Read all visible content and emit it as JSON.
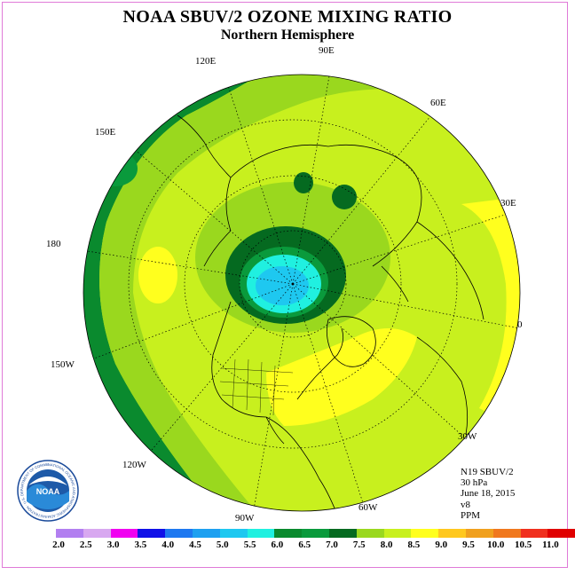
{
  "title": "NOAA SBUV/2 OZONE MIXING RATIO",
  "subtitle": "Northern Hemisphere",
  "longitude_labels": {
    "lon_120e": "120E",
    "lon_90e": "90E",
    "lon_60e": "60E",
    "lon_150e": "150E",
    "lon_30e": "30E",
    "lon_180": "180",
    "lon_0": "0",
    "lon_150w": "150W",
    "lon_30w": "30W",
    "lon_120w": "120W",
    "lon_60w": "60W",
    "lon_90w": "90W"
  },
  "info": {
    "satellite": "N19 SBUV/2",
    "level": "30 hPa",
    "date": "June 18, 2015",
    "version": "v8",
    "units": "PPM"
  },
  "colorbar": {
    "colors": [
      "#b27ff0",
      "#d8a8f0",
      "#f000f0",
      "#1010e8",
      "#1e78f0",
      "#1ea0f0",
      "#1ec8f0",
      "#20f0e0",
      "#0a8a2e",
      "#0a9a3c",
      "#056a20",
      "#9ad81e",
      "#c8f01e",
      "#ffff1e",
      "#ffc81e",
      "#f0a01e",
      "#f0781e",
      "#f0301e",
      "#e00000",
      "#8a5028"
    ],
    "tick_labels": [
      "2.0",
      "2.5",
      "3.0",
      "3.5",
      "4.0",
      "4.5",
      "5.0",
      "5.5",
      "6.0",
      "6.5",
      "7.0",
      "7.5",
      "8.0",
      "8.5",
      "9.0",
      "9.5",
      "10.0",
      "10.5",
      "11.0"
    ]
  },
  "logo": {
    "text": "NOAA",
    "ring_text": "NATIONAL OCEANIC AND ATMOSPHERIC ADMINISTRATION · U.S. DEPARTMENT OF COMMERCE"
  }
}
